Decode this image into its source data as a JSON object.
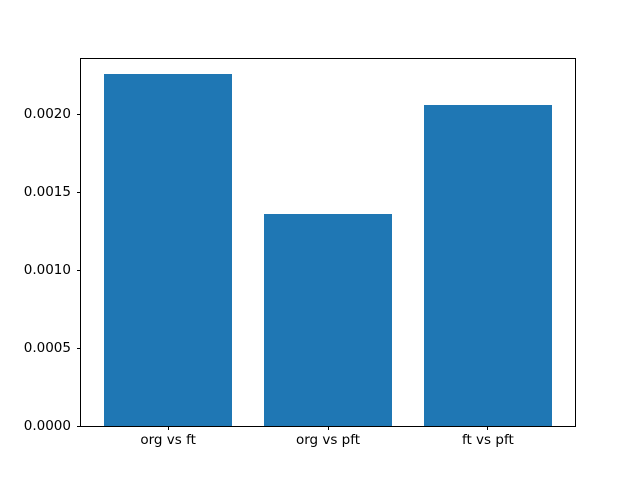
{
  "chart_data": {
    "type": "bar",
    "title": "",
    "xlabel": "",
    "ylabel": "",
    "categories": [
      "org vs ft",
      "org vs pft",
      "ft vs pft"
    ],
    "values": [
      0.00226,
      0.00136,
      0.00206
    ],
    "bar_color": "#1f77b4",
    "bar_width": 0.8,
    "xlim": [
      -0.545,
      2.545
    ],
    "ylim": [
      0,
      0.00236
    ],
    "yticks": [
      0.0,
      0.0005,
      0.001,
      0.0015,
      0.002
    ],
    "ytick_labels": [
      "0.0000",
      "0.0005",
      "0.0010",
      "0.0015",
      "0.0020"
    ],
    "grid": false,
    "legend": "none",
    "axis_color": "#000000",
    "background_color": "#ffffff"
  }
}
